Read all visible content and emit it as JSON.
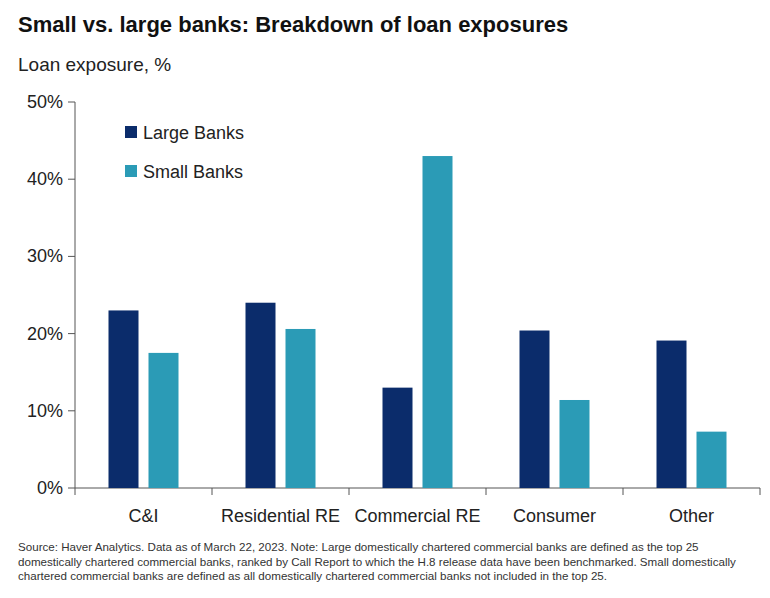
{
  "chart_data": {
    "type": "bar",
    "title": "Small vs. large banks: Breakdown of loan exposures",
    "subtitle": "Loan exposure, %",
    "categories": [
      "C&I",
      "Residential RE",
      "Commercial RE",
      "Consumer",
      "Other"
    ],
    "series": [
      {
        "name": "Large Banks",
        "color": "#0b2c6b",
        "values": [
          23,
          24,
          13,
          20.4,
          19.1
        ]
      },
      {
        "name": "Small Banks",
        "color": "#2b9bb6",
        "values": [
          17.5,
          20.6,
          43,
          11.4,
          7.3
        ]
      }
    ],
    "ylim": [
      0,
      50
    ],
    "yticks": [
      {
        "value": 0,
        "label": "0%"
      },
      {
        "value": 10,
        "label": "10%"
      },
      {
        "value": 20,
        "label": "20%"
      },
      {
        "value": 30,
        "label": "30%"
      },
      {
        "value": 40,
        "label": "40%"
      },
      {
        "value": 50,
        "label": "50%"
      }
    ],
    "grid": false,
    "legend": "upper left",
    "note": "Source: Haver Analytics. Data as of March 22, 2023. Note: Large domestically chartered commercial banks are defined as the top 25 domestically chartered commercial banks, ranked by Call Report to which the H.8 release data have been benchmarked. Small domestically chartered commercial banks are defined as all domestically chartered commercial banks not included in the top 25."
  }
}
